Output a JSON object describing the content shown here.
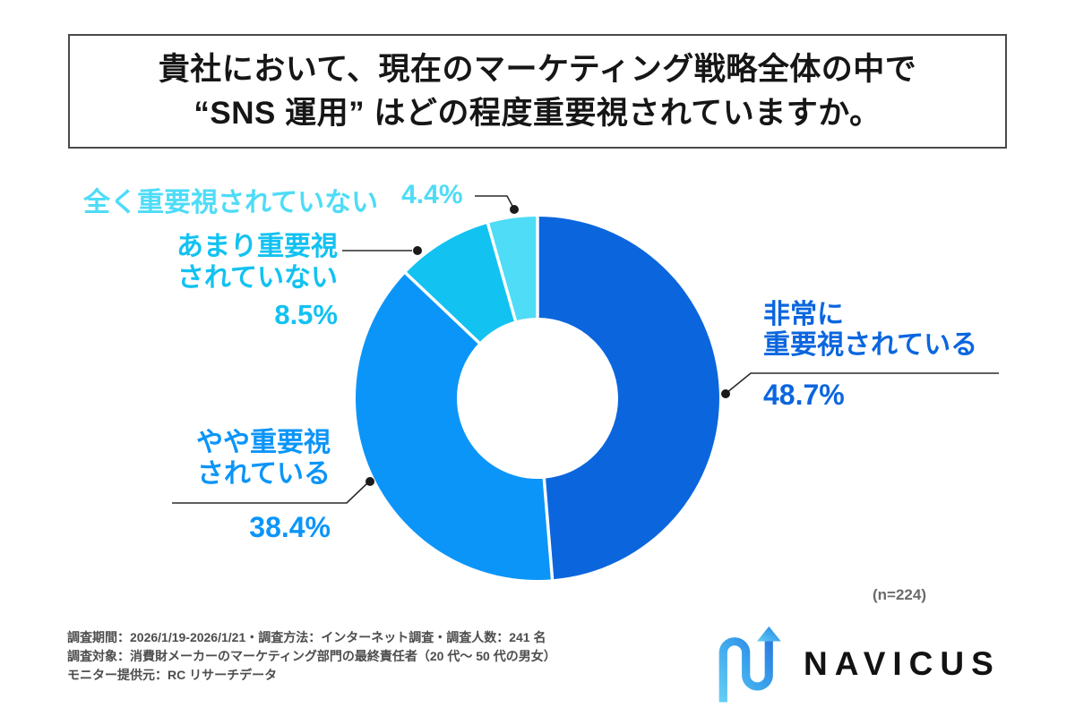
{
  "title": {
    "line1": "貴社において、現在のマーケティング戦略全体の中で",
    "line2": "“SNS 運用” はどの程度重要視されていますか。"
  },
  "chart_data": {
    "type": "pie",
    "subtype": "donut",
    "direction": "clockwise",
    "start_angle_deg": 0,
    "n_label": "(n=224)",
    "segments": [
      {
        "label": "非常に重要視されている",
        "value": 48.7,
        "display": "48.7%",
        "color": "#0b66de"
      },
      {
        "label": "やや重要視されている",
        "value": 38.4,
        "display": "38.4%",
        "color": "#0c95f8"
      },
      {
        "label": "あまり重要視されていない",
        "value": 8.5,
        "display": "8.5%",
        "color": "#12c2f1"
      },
      {
        "label": "全く重要視されていない",
        "value": 4.4,
        "display": "4.4%",
        "color": "#4edcf7"
      }
    ]
  },
  "callouts": {
    "hijou": {
      "line1": "非常に",
      "line2": "重要視されている",
      "pct": "48.7%"
    },
    "yaya": {
      "line1": "やや重要視",
      "line2": "されている",
      "pct": "38.4%"
    },
    "amari": {
      "line1": "あまり重要視",
      "line2": "されていない",
      "pct": "8.5%"
    },
    "zenzen": {
      "label": "全く重要視されていない",
      "pct": "4.4%"
    }
  },
  "footer": {
    "lines": [
      "調査期間：2026/1/19-2026/1/21・調査方法：インターネット調査・調査人数：241 名",
      "調査対象：消費財メーカーのマーケティング部門の最終責任者（20 代～ 50 代の男女）",
      "モニター提供元：RC リサーチデータ"
    ]
  },
  "logo": {
    "brand": "NAVICUS"
  },
  "colors": {
    "leader_line": "#2a2a2a",
    "title_border": "#4a4a4a",
    "logo_gradient_start": "#63cdf4",
    "logo_gradient_end": "#2b7de1"
  }
}
